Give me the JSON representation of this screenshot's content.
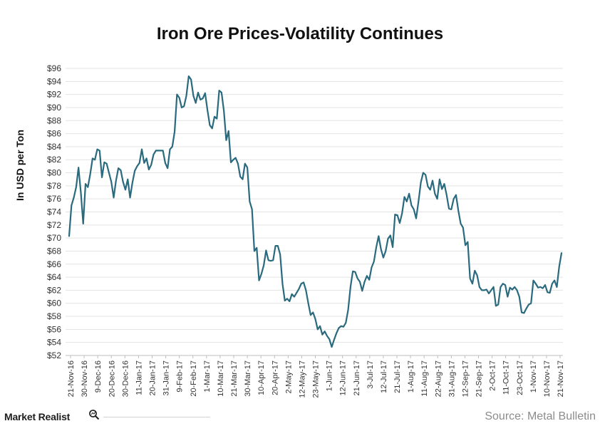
{
  "chart_data": {
    "type": "line",
    "title": "Iron Ore Prices-Volatility Continues",
    "ylabel": "In USD per Ton",
    "xlabel": "",
    "ylim": [
      52,
      96
    ],
    "y_tick_step": 2,
    "y_tick_prefix": "$",
    "grid": "horizontal",
    "legend": "none",
    "line_color": "#2a6a7e",
    "x_tick_labels": [
      "21-Nov-16",
      "30-Nov-16",
      "9-Dec-16",
      "20-Dec-16",
      "30-Dec-16",
      "11-Jan-17",
      "20-Jan-17",
      "31-Jan-17",
      "9-Feb-17",
      "20-Feb-17",
      "1-Mar-17",
      "10-Mar-17",
      "21-Mar-17",
      "30-Mar-17",
      "10-Apr-17",
      "20-Apr-17",
      "2-May-17",
      "12-May-17",
      "23-May-17",
      "1-Jun-17",
      "12-Jun-17",
      "21-Jun-17",
      "3-Jul-17",
      "12-Jul-17",
      "21-Jul-17",
      "1-Aug-17",
      "11-Aug-17",
      "22-Aug-17",
      "31-Aug-17",
      "12-Sep-17",
      "21-Sep-17",
      "2-Oct-17",
      "11-Oct-17",
      "23-Oct-17",
      "1-Nov-17",
      "10-Nov-17",
      "21-Nov-17"
    ],
    "values": [
      70.3,
      75.0,
      76.2,
      77.8,
      80.8,
      77.0,
      72.2,
      78.3,
      77.8,
      79.8,
      82.2,
      82.0,
      83.6,
      83.4,
      79.3,
      81.6,
      81.4,
      80.0,
      78.6,
      76.2,
      78.8,
      80.7,
      80.4,
      78.6,
      77.4,
      79.0,
      76.2,
      78.5,
      80.3,
      81.0,
      81.5,
      83.6,
      81.5,
      82.2,
      80.5,
      81.2,
      82.8,
      83.4,
      83.4,
      83.4,
      83.4,
      81.5,
      80.7,
      83.6,
      84.0,
      86.3,
      92.0,
      91.5,
      90.0,
      90.2,
      91.8,
      94.8,
      94.3,
      91.8,
      90.7,
      92.3,
      91.2,
      91.4,
      92.2,
      89.6,
      87.3,
      86.8,
      88.6,
      88.3,
      92.6,
      92.3,
      89.5,
      85.0,
      86.4,
      81.6,
      82.0,
      82.3,
      81.4,
      79.4,
      79.0,
      81.4,
      80.8,
      75.6,
      74.4,
      68.0,
      68.5,
      63.5,
      64.5,
      65.8,
      68.1,
      66.6,
      66.5,
      66.6,
      68.8,
      68.8,
      67.5,
      63.0,
      60.4,
      60.7,
      60.3,
      61.4,
      61.0,
      61.6,
      62.2,
      63.0,
      63.2,
      62.0,
      60.0,
      58.2,
      58.6,
      57.6,
      56.0,
      56.5,
      55.2,
      55.7,
      55.0,
      54.5,
      53.3,
      54.4,
      55.4,
      56.2,
      56.5,
      56.4,
      57.0,
      59.0,
      62.5,
      64.9,
      64.8,
      63.8,
      63.3,
      61.9,
      63.3,
      64.2,
      63.6,
      65.5,
      66.4,
      68.6,
      70.3,
      68.3,
      67.0,
      68.0,
      69.9,
      70.4,
      68.6,
      73.6,
      73.5,
      72.3,
      73.8,
      76.3,
      75.6,
      76.8,
      75.0,
      74.4,
      73.0,
      75.6,
      78.5,
      80.0,
      79.7,
      77.9,
      77.4,
      78.8,
      76.8,
      76.0,
      79.0,
      77.5,
      78.3,
      76.6,
      74.5,
      74.4,
      76.0,
      76.6,
      74.2,
      72.2,
      71.6,
      68.9,
      69.4,
      63.8,
      63.0,
      65.0,
      64.3,
      62.5,
      62.0,
      62.0,
      62.1,
      61.5,
      62.0,
      62.5,
      59.6,
      59.8,
      62.5,
      63.0,
      62.8,
      61.0,
      62.4,
      62.1,
      62.5,
      62.0,
      61.0,
      58.6,
      58.5,
      59.2,
      59.8,
      60.0,
      63.5,
      63.0,
      62.4,
      62.5,
      62.3,
      62.8,
      61.7,
      61.6,
      63.0,
      63.5,
      62.5,
      65.6,
      67.7
    ]
  },
  "footer": {
    "brand": "Market Realist",
    "source": "Source: Metal Bulletin"
  }
}
